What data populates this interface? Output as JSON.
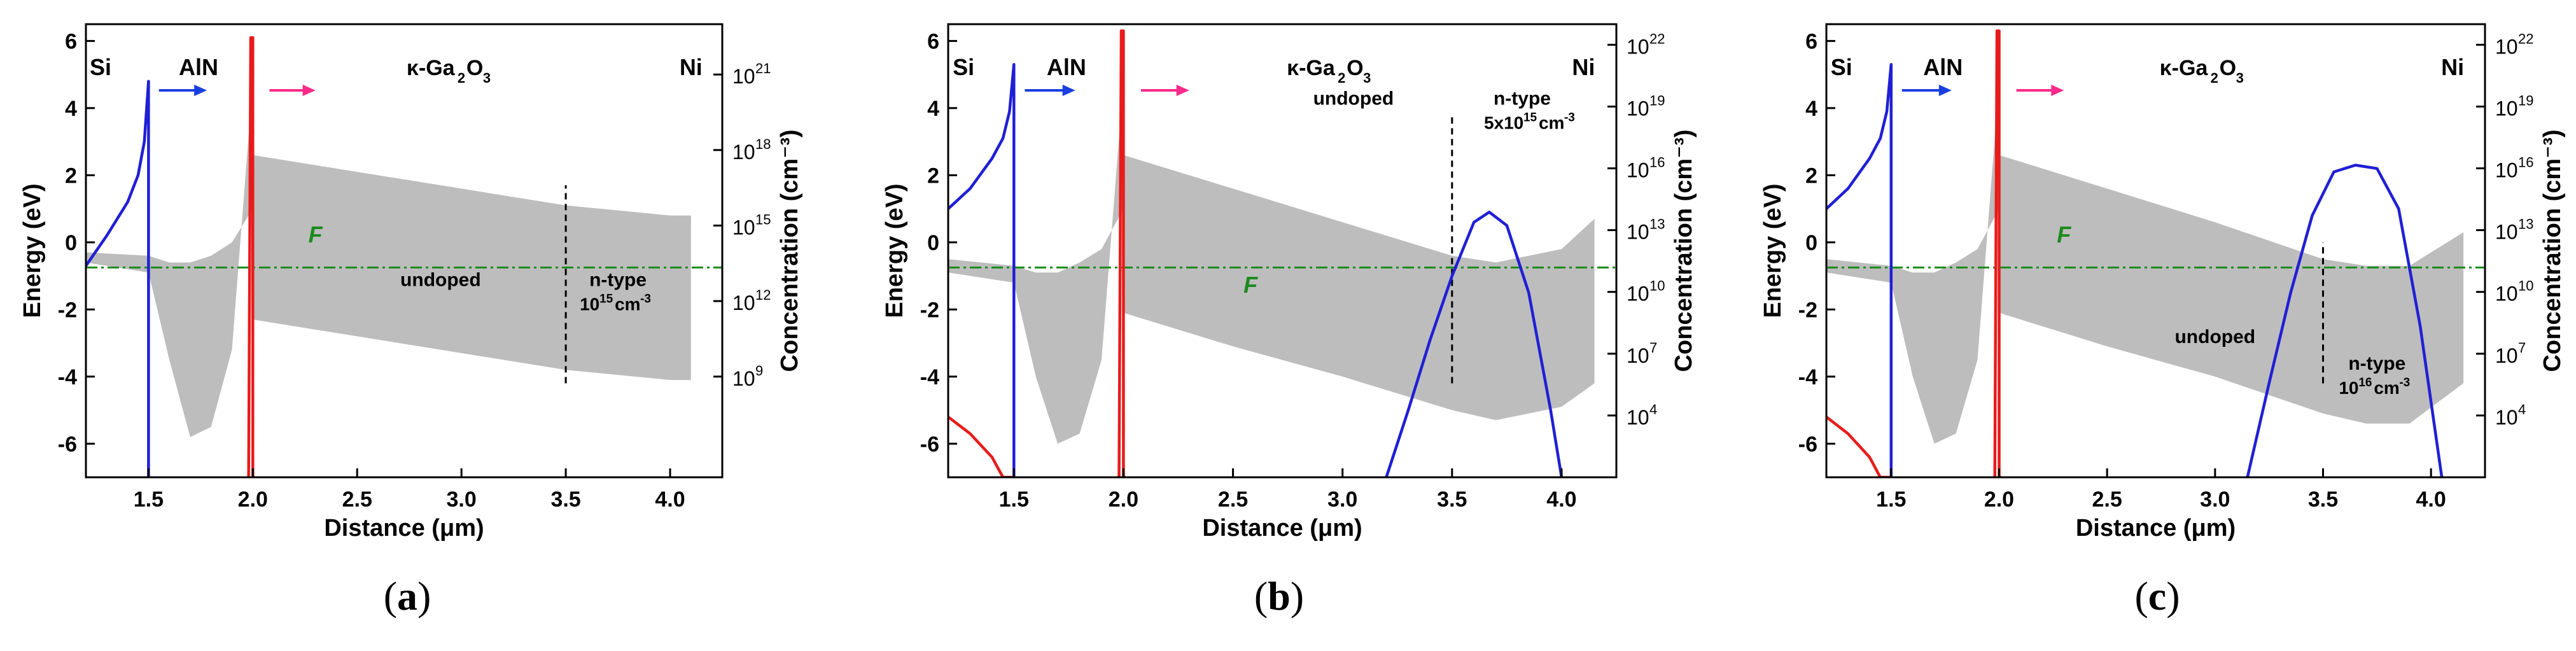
{
  "figure": {
    "panel_labels": [
      "a",
      "b",
      "c"
    ]
  },
  "colors": {
    "band": "#bdbdbd",
    "electron": "#1f1fd6",
    "hole": "#e81b1b",
    "fermi": "#1d8a1d",
    "arrow_blue": "#1a3fe0",
    "arrow_pink": "#ff2a8a",
    "axis": "#000000"
  },
  "chart_data": [
    {
      "type": "line",
      "panel": "a",
      "xlabel": "Distance (μm)",
      "ylabel": "Energy (eV)",
      "ylabel_right": "Concentration (cm⁻³)",
      "xlim": [
        1.2,
        4.25
      ],
      "ylim": [
        -7,
        6.5
      ],
      "x_ticks": [
        "1.5",
        "2.0",
        "2.5",
        "3.0",
        "3.5",
        "4.0"
      ],
      "y_ticks": [
        "-6",
        "-4",
        "-2",
        "0",
        "2",
        "4",
        "6"
      ],
      "right_log_ylim": [
        5,
        23
      ],
      "right_ticks": [
        {
          "exp": 9,
          "label": "10"
        },
        {
          "exp": 12,
          "label": "10"
        },
        {
          "exp": 15,
          "label": "10"
        },
        {
          "exp": 18,
          "label": "10"
        },
        {
          "exp": 21,
          "label": "10"
        }
      ],
      "right_tick_exps": [
        "9",
        "12",
        "15",
        "18",
        "21"
      ],
      "layers": [
        "Si",
        "AlN",
        "κ-Ga",
        "2",
        "O",
        "3",
        "Ni"
      ],
      "fermi_label": "F",
      "fermi_level_eV": -0.75,
      "interface_line_x": 3.5,
      "annotations": {
        "undoped": "undoped",
        "ntype": "n-type",
        "conc_main": "10",
        "conc_exp": "15",
        "conc_unit": "cm",
        "conc_unit_exp": "-3"
      },
      "conduction_band": {
        "x": [
          1.2,
          1.5,
          1.6,
          1.7,
          1.8,
          1.9,
          2.0,
          2.0,
          2.5,
          3.0,
          3.5,
          4.0,
          4.1
        ],
        "y": [
          -0.3,
          -0.4,
          -0.6,
          -0.6,
          -0.4,
          0,
          1.0,
          2.6,
          2.1,
          1.6,
          1.1,
          0.8,
          0.8
        ]
      },
      "valence_band": {
        "x": [
          1.2,
          1.5,
          1.6,
          1.7,
          1.8,
          1.9,
          2.0,
          2.0,
          2.5,
          3.0,
          3.5,
          4.0,
          4.1
        ],
        "y": [
          -0.6,
          -0.9,
          -3.5,
          -5.8,
          -5.5,
          -3.2,
          4.8,
          -2.3,
          -2.8,
          -3.3,
          -3.8,
          -4.1,
          -4.1
        ]
      },
      "series": [
        {
          "name": "electron concentration",
          "x": [
            1.2,
            1.3,
            1.4,
            1.45,
            1.48,
            1.5,
            1.5
          ],
          "y": [
            -0.7,
            0.2,
            1.2,
            2.0,
            3.0,
            4.8,
            -7
          ]
        },
        {
          "name": "hole concentration",
          "x": [
            1.98,
            1.99,
            2.0,
            2.0,
            2.01
          ],
          "y": [
            -7,
            6.1,
            6.1,
            -7,
            -7
          ]
        }
      ]
    },
    {
      "type": "line",
      "panel": "b",
      "xlabel": "Distance (μm)",
      "ylabel": "Energy (eV)",
      "ylabel_right": "Concentration (cm⁻³)",
      "xlim": [
        1.2,
        4.25
      ],
      "ylim": [
        -7,
        6.5
      ],
      "x_ticks": [
        "1.5",
        "2.0",
        "2.5",
        "3.0",
        "3.5",
        "4.0"
      ],
      "y_ticks": [
        "-6",
        "-4",
        "-2",
        "0",
        "2",
        "4",
        "6"
      ],
      "right_log_ylim": [
        1,
        23
      ],
      "right_ticks": [
        {
          "exp": 4,
          "label": "10"
        },
        {
          "exp": 7,
          "label": "10"
        },
        {
          "exp": 10,
          "label": "10"
        },
        {
          "exp": 13,
          "label": "10"
        },
        {
          "exp": 16,
          "label": "10"
        },
        {
          "exp": 19,
          "label": "10"
        },
        {
          "exp": 22,
          "label": "10"
        }
      ],
      "right_tick_exps": [
        "4",
        "7",
        "10",
        "13",
        "16",
        "19",
        "22"
      ],
      "layers": [
        "Si",
        "AlN",
        "κ-Ga",
        "2",
        "O",
        "3",
        "Ni"
      ],
      "fermi_label": "F",
      "fermi_level_eV": -0.75,
      "interface_line_x": 3.5,
      "annotations": {
        "undoped": "undoped",
        "ntype": "n-type",
        "conc_main": "5x10",
        "conc_exp": "15",
        "conc_unit": "cm",
        "conc_unit_exp": "-3"
      },
      "conduction_band": {
        "x": [
          1.2,
          1.5,
          1.6,
          1.7,
          1.8,
          1.9,
          2.0,
          2.0,
          2.5,
          3.0,
          3.5,
          3.7,
          4.0,
          4.15
        ],
        "y": [
          -0.5,
          -0.7,
          -0.9,
          -0.9,
          -0.6,
          -0.2,
          1.0,
          2.6,
          1.6,
          0.6,
          -0.4,
          -0.6,
          -0.2,
          0.7
        ]
      },
      "valence_band": {
        "x": [
          1.2,
          1.5,
          1.6,
          1.7,
          1.8,
          1.9,
          2.0,
          2.0,
          2.5,
          3.0,
          3.5,
          3.7,
          4.0,
          4.15
        ],
        "y": [
          -0.9,
          -1.2,
          -4.0,
          -6.0,
          -5.7,
          -3.5,
          4.8,
          -2.1,
          -3.1,
          -4.0,
          -5.0,
          -5.3,
          -4.9,
          -4.2
        ]
      },
      "series": [
        {
          "name": "electron concentration",
          "x": [
            1.2,
            1.3,
            1.4,
            1.45,
            1.48,
            1.5,
            1.5
          ],
          "y": [
            1.0,
            1.6,
            2.5,
            3.1,
            3.9,
            5.3,
            -7
          ]
        },
        {
          "name": "hole concentration",
          "x": [
            1.98,
            1.99,
            2.0,
            2.0,
            2.01
          ],
          "y": [
            -7,
            6.3,
            6.3,
            -7,
            -7
          ]
        },
        {
          "name": "hole concentration Si",
          "x": [
            1.2,
            1.3,
            1.4,
            1.45,
            1.5
          ],
          "y": [
            -5.2,
            -5.7,
            -6.4,
            -7,
            -7
          ]
        },
        {
          "name": "electron concentration Ga2O3",
          "x": [
            3.2,
            3.3,
            3.4,
            3.5,
            3.6,
            3.67,
            3.75,
            3.85,
            3.95,
            4.0
          ],
          "y": [
            -7,
            -5.0,
            -2.9,
            -1.0,
            0.6,
            0.9,
            0.5,
            -1.5,
            -5.0,
            -7
          ]
        }
      ]
    },
    {
      "type": "line",
      "panel": "c",
      "xlabel": "Distance (μm)",
      "ylabel": "Energy (eV)",
      "ylabel_right": "Concentration (cm⁻³)",
      "xlim": [
        1.2,
        4.25
      ],
      "ylim": [
        -7,
        6.5
      ],
      "x_ticks": [
        "1.5",
        "2.0",
        "2.5",
        "3.0",
        "3.5",
        "4.0"
      ],
      "y_ticks": [
        "-6",
        "-4",
        "-2",
        "0",
        "2",
        "4",
        "6"
      ],
      "right_log_ylim": [
        1,
        23
      ],
      "right_ticks": [
        {
          "exp": 4,
          "label": "10"
        },
        {
          "exp": 7,
          "label": "10"
        },
        {
          "exp": 10,
          "label": "10"
        },
        {
          "exp": 13,
          "label": "10"
        },
        {
          "exp": 16,
          "label": "10"
        },
        {
          "exp": 19,
          "label": "10"
        },
        {
          "exp": 22,
          "label": "10"
        }
      ],
      "right_tick_exps": [
        "4",
        "7",
        "10",
        "13",
        "16",
        "19",
        "22"
      ],
      "layers": [
        "Si",
        "AlN",
        "κ-Ga",
        "2",
        "O",
        "3",
        "Ni"
      ],
      "fermi_label": "F",
      "fermi_level_eV": -0.75,
      "interface_line_x": 3.5,
      "annotations": {
        "undoped": "undoped",
        "ntype": "n-type",
        "conc_main": "10",
        "conc_exp": "16",
        "conc_unit": "cm",
        "conc_unit_exp": "-3"
      },
      "conduction_band": {
        "x": [
          1.2,
          1.5,
          1.6,
          1.7,
          1.8,
          1.9,
          2.0,
          2.0,
          2.5,
          3.0,
          3.5,
          3.7,
          3.9,
          4.15
        ],
        "y": [
          -0.5,
          -0.7,
          -0.9,
          -0.9,
          -0.6,
          -0.2,
          1.0,
          2.6,
          1.6,
          0.6,
          -0.5,
          -0.7,
          -0.7,
          0.3
        ]
      },
      "valence_band": {
        "x": [
          1.2,
          1.5,
          1.6,
          1.7,
          1.8,
          1.9,
          2.0,
          2.0,
          2.5,
          3.0,
          3.5,
          3.7,
          3.9,
          4.15
        ],
        "y": [
          -0.9,
          -1.2,
          -4.0,
          -6.0,
          -5.7,
          -3.5,
          4.8,
          -2.1,
          -3.1,
          -4.0,
          -5.1,
          -5.4,
          -5.4,
          -4.2
        ]
      },
      "series": [
        {
          "name": "electron concentration",
          "x": [
            1.2,
            1.3,
            1.4,
            1.45,
            1.48,
            1.5,
            1.5
          ],
          "y": [
            1.0,
            1.6,
            2.5,
            3.1,
            3.9,
            5.3,
            -7
          ]
        },
        {
          "name": "hole concentration",
          "x": [
            1.98,
            1.99,
            2.0,
            2.0,
            2.01
          ],
          "y": [
            -7,
            6.3,
            6.3,
            -7,
            -7
          ]
        },
        {
          "name": "hole concentration Si",
          "x": [
            1.2,
            1.3,
            1.4,
            1.45,
            1.5
          ],
          "y": [
            -5.2,
            -5.7,
            -6.4,
            -7,
            -7
          ]
        },
        {
          "name": "electron concentration Ga2O3",
          "x": [
            3.15,
            3.25,
            3.35,
            3.45,
            3.55,
            3.65,
            3.75,
            3.85,
            3.95,
            4.05
          ],
          "y": [
            -7,
            -4.2,
            -1.5,
            0.8,
            2.1,
            2.3,
            2.2,
            1.0,
            -2.5,
            -7
          ]
        }
      ]
    }
  ]
}
